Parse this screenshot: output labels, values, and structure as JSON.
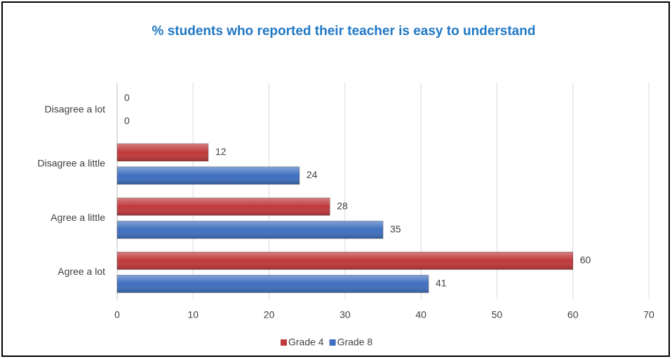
{
  "chart_data": {
    "type": "bar",
    "orientation": "horizontal",
    "title": "% students who reported their teacher is easy to understand",
    "categories": [
      "Disagree a lot",
      "Disagree a little",
      "Agree a little",
      "Agree a lot"
    ],
    "series": [
      {
        "name": "Grade 4",
        "color": "#c0393b",
        "values": [
          0,
          12,
          28,
          60
        ]
      },
      {
        "name": "Grade 8",
        "color": "#3f6fc0",
        "values": [
          0,
          24,
          35,
          41
        ]
      }
    ],
    "xlim": [
      0,
      70
    ],
    "xticks": [
      0,
      10,
      20,
      30,
      40,
      50,
      60,
      70
    ],
    "grid": true,
    "legend": "bottom"
  }
}
